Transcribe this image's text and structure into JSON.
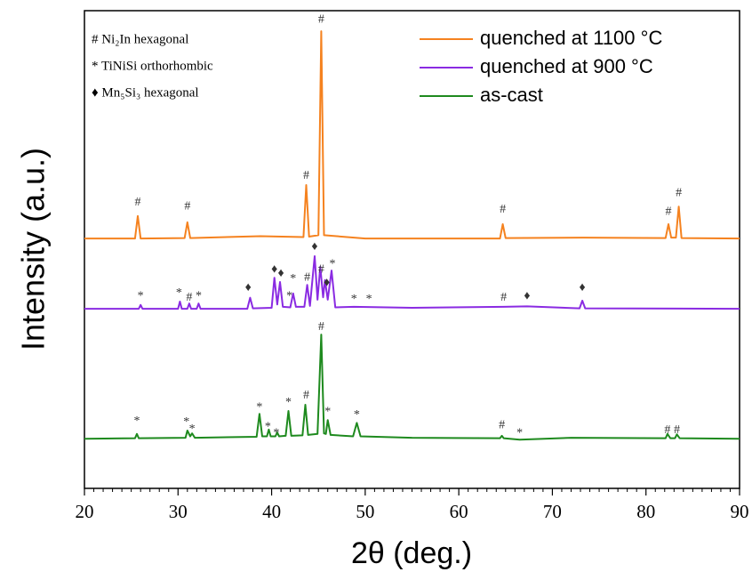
{
  "chart_data": {
    "type": "line",
    "xlabel": "2θ (deg.)",
    "ylabel": "Intensity (a.u.)",
    "xlim": [
      20,
      90
    ],
    "xticks": [
      20,
      30,
      40,
      50,
      60,
      70,
      80,
      90
    ],
    "ylim": [
      0,
      100
    ],
    "legend": "upper right",
    "series": [
      {
        "name": "quenched at 1100 °C",
        "color": "#f5821f",
        "x": [
          20,
          25.4,
          25.7,
          26.0,
          30.7,
          31.0,
          31.3,
          38.8,
          43.4,
          43.7,
          44.0,
          45.0,
          45.3,
          45.6,
          50,
          64.4,
          64.7,
          65.0,
          73.3,
          82.1,
          82.4,
          82.7,
          83.2,
          83.5,
          83.8,
          90
        ],
        "values": [
          52.3,
          52.3,
          57.0,
          52.3,
          52.4,
          55.7,
          52.4,
          52.8,
          52.6,
          63.5,
          52.7,
          53.0,
          95.7,
          53.0,
          52.3,
          52.3,
          55.3,
          52.4,
          52.5,
          52.4,
          55.3,
          52.5,
          52.5,
          59.0,
          52.4,
          52.3
        ]
      },
      {
        "name": "quenched at 900 °C",
        "color": "#8a2be2",
        "x": [
          20,
          25.8,
          26.0,
          26.2,
          30.0,
          30.2,
          30.4,
          31.0,
          31.2,
          31.4,
          32.0,
          32.2,
          32.4,
          37.4,
          37.7,
          38.0,
          40.0,
          40.3,
          40.6,
          40.9,
          41.2,
          42.0,
          42.3,
          42.6,
          43.5,
          43.8,
          44.1,
          44.6,
          44.9,
          45.2,
          45.5,
          45.7,
          46.0,
          46.4,
          46.8,
          48.8,
          55,
          64.8,
          67.3,
          72.9,
          73.2,
          73.5,
          90
        ],
        "values": [
          37.6,
          37.6,
          38.4,
          37.6,
          37.6,
          39.1,
          37.6,
          37.6,
          38.7,
          37.6,
          37.6,
          38.7,
          37.6,
          37.6,
          39.9,
          37.7,
          37.8,
          44.1,
          38.5,
          43.2,
          38.0,
          37.9,
          40.8,
          38.0,
          38.0,
          42.6,
          38.2,
          48.6,
          39.5,
          46.4,
          40.0,
          43.6,
          39.5,
          45.6,
          37.9,
          38.0,
          37.8,
          38.0,
          38.1,
          37.7,
          39.3,
          37.7,
          37.6
        ]
      },
      {
        "name": "as-cast",
        "color": "#1e8a1e",
        "x": [
          20,
          25.4,
          25.6,
          25.8,
          30.8,
          31.0,
          31.3,
          31.5,
          31.8,
          38.4,
          38.7,
          39.0,
          39.5,
          39.7,
          39.9,
          40.4,
          40.6,
          40.8,
          41.5,
          41.8,
          42.1,
          43.3,
          43.6,
          43.9,
          44.9,
          45.3,
          45.6,
          45.8,
          46.0,
          46.3,
          48.7,
          49.1,
          49.5,
          55,
          64.4,
          64.6,
          64.8,
          66.5,
          72,
          82.1,
          82.3,
          82.6,
          83.1,
          83.3,
          83.6,
          90
        ],
        "values": [
          10.4,
          10.5,
          11.4,
          10.5,
          10.6,
          12.1,
          10.9,
          11.5,
          10.6,
          10.8,
          15.6,
          10.9,
          10.9,
          12.3,
          10.9,
          10.9,
          11.7,
          10.9,
          11.0,
          16.2,
          11.0,
          11.1,
          17.5,
          11.2,
          11.4,
          32.2,
          11.5,
          11.4,
          14.3,
          11.2,
          10.9,
          13.7,
          10.9,
          10.6,
          10.5,
          11.0,
          10.5,
          10.2,
          10.6,
          10.5,
          11.4,
          10.5,
          10.5,
          11.3,
          10.5,
          10.4
        ]
      }
    ],
    "phase_legend": [
      "# Ni₂In hexagonal",
      "* TiNiSi orthorhombic",
      "♦ Mn₅Si₃ hexagonal"
    ],
    "annotations": [
      {
        "text": "#",
        "x": 25.7,
        "y": 59.8
      },
      {
        "text": "#",
        "x": 31.0,
        "y": 59.0
      },
      {
        "text": "#",
        "x": 43.7,
        "y": 65.4
      },
      {
        "text": "#",
        "x": 45.3,
        "y": 98.1
      },
      {
        "text": "#",
        "x": 64.7,
        "y": 58.3
      },
      {
        "text": "#",
        "x": 82.4,
        "y": 57.9
      },
      {
        "text": "#",
        "x": 83.5,
        "y": 61.8
      },
      {
        "text": "*",
        "x": 26.0,
        "y": 40.2
      },
      {
        "text": "*",
        "x": 30.1,
        "y": 40.8
      },
      {
        "text": "#",
        "x": 31.2,
        "y": 39.9
      },
      {
        "text": "*",
        "x": 32.2,
        "y": 40.2
      },
      {
        "text": "♦",
        "x": 37.5,
        "y": 41.9
      },
      {
        "text": "♦",
        "x": 40.3,
        "y": 45.8
      },
      {
        "text": "♦",
        "x": 41.0,
        "y": 44.9
      },
      {
        "text": "*",
        "x": 41.9,
        "y": 40.2
      },
      {
        "text": "*",
        "x": 42.3,
        "y": 43.8
      },
      {
        "text": "#",
        "x": 43.8,
        "y": 44.1
      },
      {
        "text": "♦",
        "x": 44.6,
        "y": 50.5
      },
      {
        "text": "#",
        "x": 45.3,
        "y": 45.8
      },
      {
        "text": "♦",
        "x": 45.9,
        "y": 43.0
      },
      {
        "text": "*",
        "x": 46.5,
        "y": 46.9
      },
      {
        "text": "*",
        "x": 48.8,
        "y": 39.5
      },
      {
        "text": "*",
        "x": 50.4,
        "y": 39.5
      },
      {
        "text": "#",
        "x": 64.8,
        "y": 39.9
      },
      {
        "text": "♦",
        "x": 67.3,
        "y": 40.2
      },
      {
        "text": "♦",
        "x": 73.2,
        "y": 41.9
      },
      {
        "text": "*",
        "x": 25.6,
        "y": 14.0
      },
      {
        "text": "*",
        "x": 30.9,
        "y": 13.8
      },
      {
        "text": "*",
        "x": 31.5,
        "y": 12.3
      },
      {
        "text": "*",
        "x": 38.7,
        "y": 16.9
      },
      {
        "text": "*",
        "x": 39.6,
        "y": 12.8
      },
      {
        "text": "*",
        "x": 40.5,
        "y": 11.5
      },
      {
        "text": "*",
        "x": 41.8,
        "y": 17.9
      },
      {
        "text": "#",
        "x": 43.7,
        "y": 19.4
      },
      {
        "text": "#",
        "x": 45.3,
        "y": 33.7
      },
      {
        "text": "*",
        "x": 46.0,
        "y": 16.0
      },
      {
        "text": "*",
        "x": 49.1,
        "y": 15.3
      },
      {
        "text": "#",
        "x": 64.6,
        "y": 13.2
      },
      {
        "text": "*",
        "x": 66.5,
        "y": 11.5
      },
      {
        "text": "#",
        "x": 82.3,
        "y": 12.1
      },
      {
        "text": "#",
        "x": 83.3,
        "y": 12.1
      }
    ]
  }
}
